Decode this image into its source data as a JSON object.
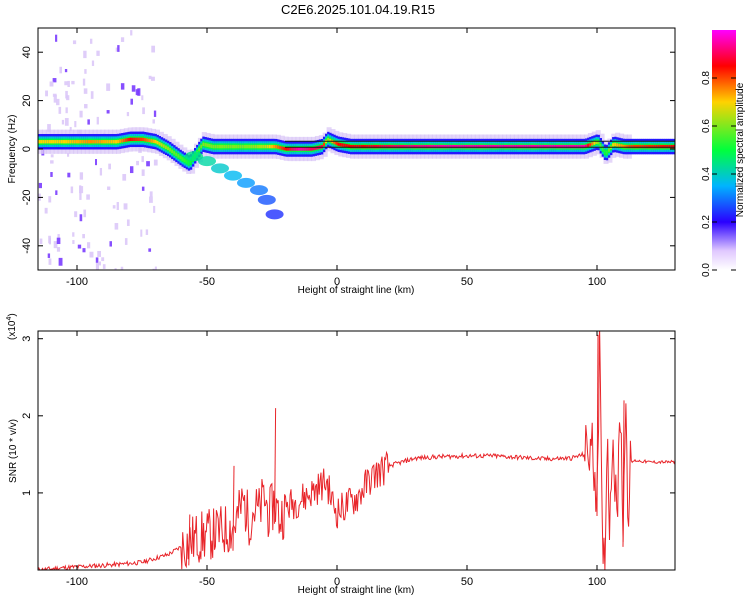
{
  "title": "C2E6.2025.101.04.19.R15",
  "chart_data": [
    {
      "type": "heatmap",
      "title": "C2E6.2025.101.04.19.R15",
      "xlabel": "Height of straight line (km)",
      "ylabel": "Frequency (Hz)",
      "xlim": [
        -115,
        130
      ],
      "ylim": [
        -50,
        50
      ],
      "xticks": [
        -100,
        -50,
        0,
        50,
        100
      ],
      "yticks": [
        -40,
        -20,
        0,
        20,
        40
      ],
      "colorbar": {
        "label": "Normalized spectral amplitude",
        "range": [
          0.0,
          1.0
        ],
        "ticks": [
          0.0,
          0.2,
          0.4,
          0.6,
          0.8
        ],
        "colors": [
          "#ffffff",
          "#1400ff",
          "#00b4ff",
          "#00ff3c",
          "#ffd200",
          "#ff0000",
          "#ff00ff"
        ]
      },
      "ridge": {
        "x": [
          -113,
          -105,
          -95,
          -85,
          -80,
          -75,
          -70,
          -65,
          -60,
          -57,
          -52,
          -48,
          -42,
          -35,
          -28,
          -24,
          -20,
          -15,
          -10,
          -6,
          -4,
          -2,
          0,
          5,
          10,
          20,
          40,
          60,
          80,
          95,
          100,
          103,
          106,
          110,
          112,
          130
        ],
        "y": [
          3,
          3,
          3,
          3,
          4,
          4,
          3,
          0,
          -4,
          -6,
          2,
          1,
          1,
          1,
          1,
          1,
          0,
          0,
          0,
          1,
          4,
          3,
          2,
          1,
          1,
          1,
          1,
          1,
          1,
          1,
          3,
          -2,
          2,
          1,
          1,
          1
        ],
        "amplitude": [
          0.7,
          0.7,
          0.75,
          0.7,
          0.85,
          0.8,
          0.7,
          0.6,
          0.55,
          0.5,
          0.6,
          0.6,
          0.6,
          0.6,
          0.65,
          0.75,
          0.85,
          0.95,
          0.9,
          0.9,
          0.6,
          0.75,
          0.85,
          0.85,
          0.85,
          0.9,
          0.95,
          0.95,
          0.95,
          0.95,
          0.6,
          0.5,
          0.7,
          0.75,
          0.8,
          0.85
        ]
      },
      "secondary_branch": {
        "x": [
          -55,
          -50,
          -45,
          -40,
          -35,
          -30,
          -27,
          -24
        ],
        "y": [
          -3,
          -5,
          -8,
          -11,
          -14,
          -17,
          -21,
          -27
        ],
        "amplitude": [
          0.5,
          0.45,
          0.4,
          0.35,
          0.3,
          0.25,
          0.2,
          0.15
        ]
      }
    },
    {
      "type": "line",
      "xlabel": "Height of straight line (km)",
      "ylabel": "SNR (10 * v/v)",
      "y_multiplier": "(x10",
      "y_multiplier_exponent": "4",
      "y_multiplier_close": ")",
      "xlim": [
        -115,
        130
      ],
      "ylim": [
        0,
        3.1
      ],
      "xticks": [
        -100,
        -50,
        0,
        50,
        100
      ],
      "yticks": [
        1,
        2,
        3
      ],
      "series": [
        {
          "color": "#e8252a",
          "x": [
            -115,
            -105,
            -95,
            -85,
            -75,
            -70,
            -65,
            -60,
            -55,
            -50,
            -45,
            -40,
            -38,
            -36,
            -34,
            -32,
            -30,
            -28,
            -26,
            -24,
            -22,
            -20,
            -18,
            -15,
            -12,
            -10,
            -8,
            -6,
            -4,
            -2,
            0,
            2,
            4,
            6,
            8,
            10,
            12,
            15,
            20,
            25,
            30,
            40,
            50,
            60,
            70,
            80,
            90,
            95,
            98,
            100,
            101,
            102,
            103,
            104,
            105,
            106,
            107,
            108,
            109,
            110,
            111,
            112,
            113,
            115,
            120,
            125,
            130
          ],
          "y": [
            0.0,
            0.03,
            0.05,
            0.07,
            0.1,
            0.15,
            0.2,
            0.3,
            0.4,
            0.45,
            0.5,
            0.55,
            0.7,
            0.9,
            0.65,
            0.8,
            0.75,
            0.95,
            0.7,
            0.9,
            0.65,
            0.8,
            0.85,
            0.9,
            0.95,
            1.0,
            1.05,
            1.1,
            1.15,
            0.9,
            0.75,
            0.8,
            0.85,
            0.9,
            0.95,
            1.05,
            1.15,
            1.25,
            1.35,
            1.4,
            1.45,
            1.47,
            1.48,
            1.48,
            1.46,
            1.44,
            1.45,
            1.5,
            1.6,
            1.0,
            3.0,
            0.3,
            0.1,
            1.8,
            0.5,
            1.9,
            1.2,
            0.9,
            2.1,
            0.6,
            2.2,
            0.8,
            1.4,
            1.42,
            1.4,
            1.4,
            1.4
          ],
          "peaks": [
            {
              "x": -57,
              "y": 0.72
            },
            {
              "x": -40,
              "y": 1.35
            },
            {
              "x": -24,
              "y": 2.1
            },
            {
              "x": 100,
              "y": 3.05
            },
            {
              "x": 110,
              "y": 2.2
            }
          ]
        }
      ]
    }
  ]
}
